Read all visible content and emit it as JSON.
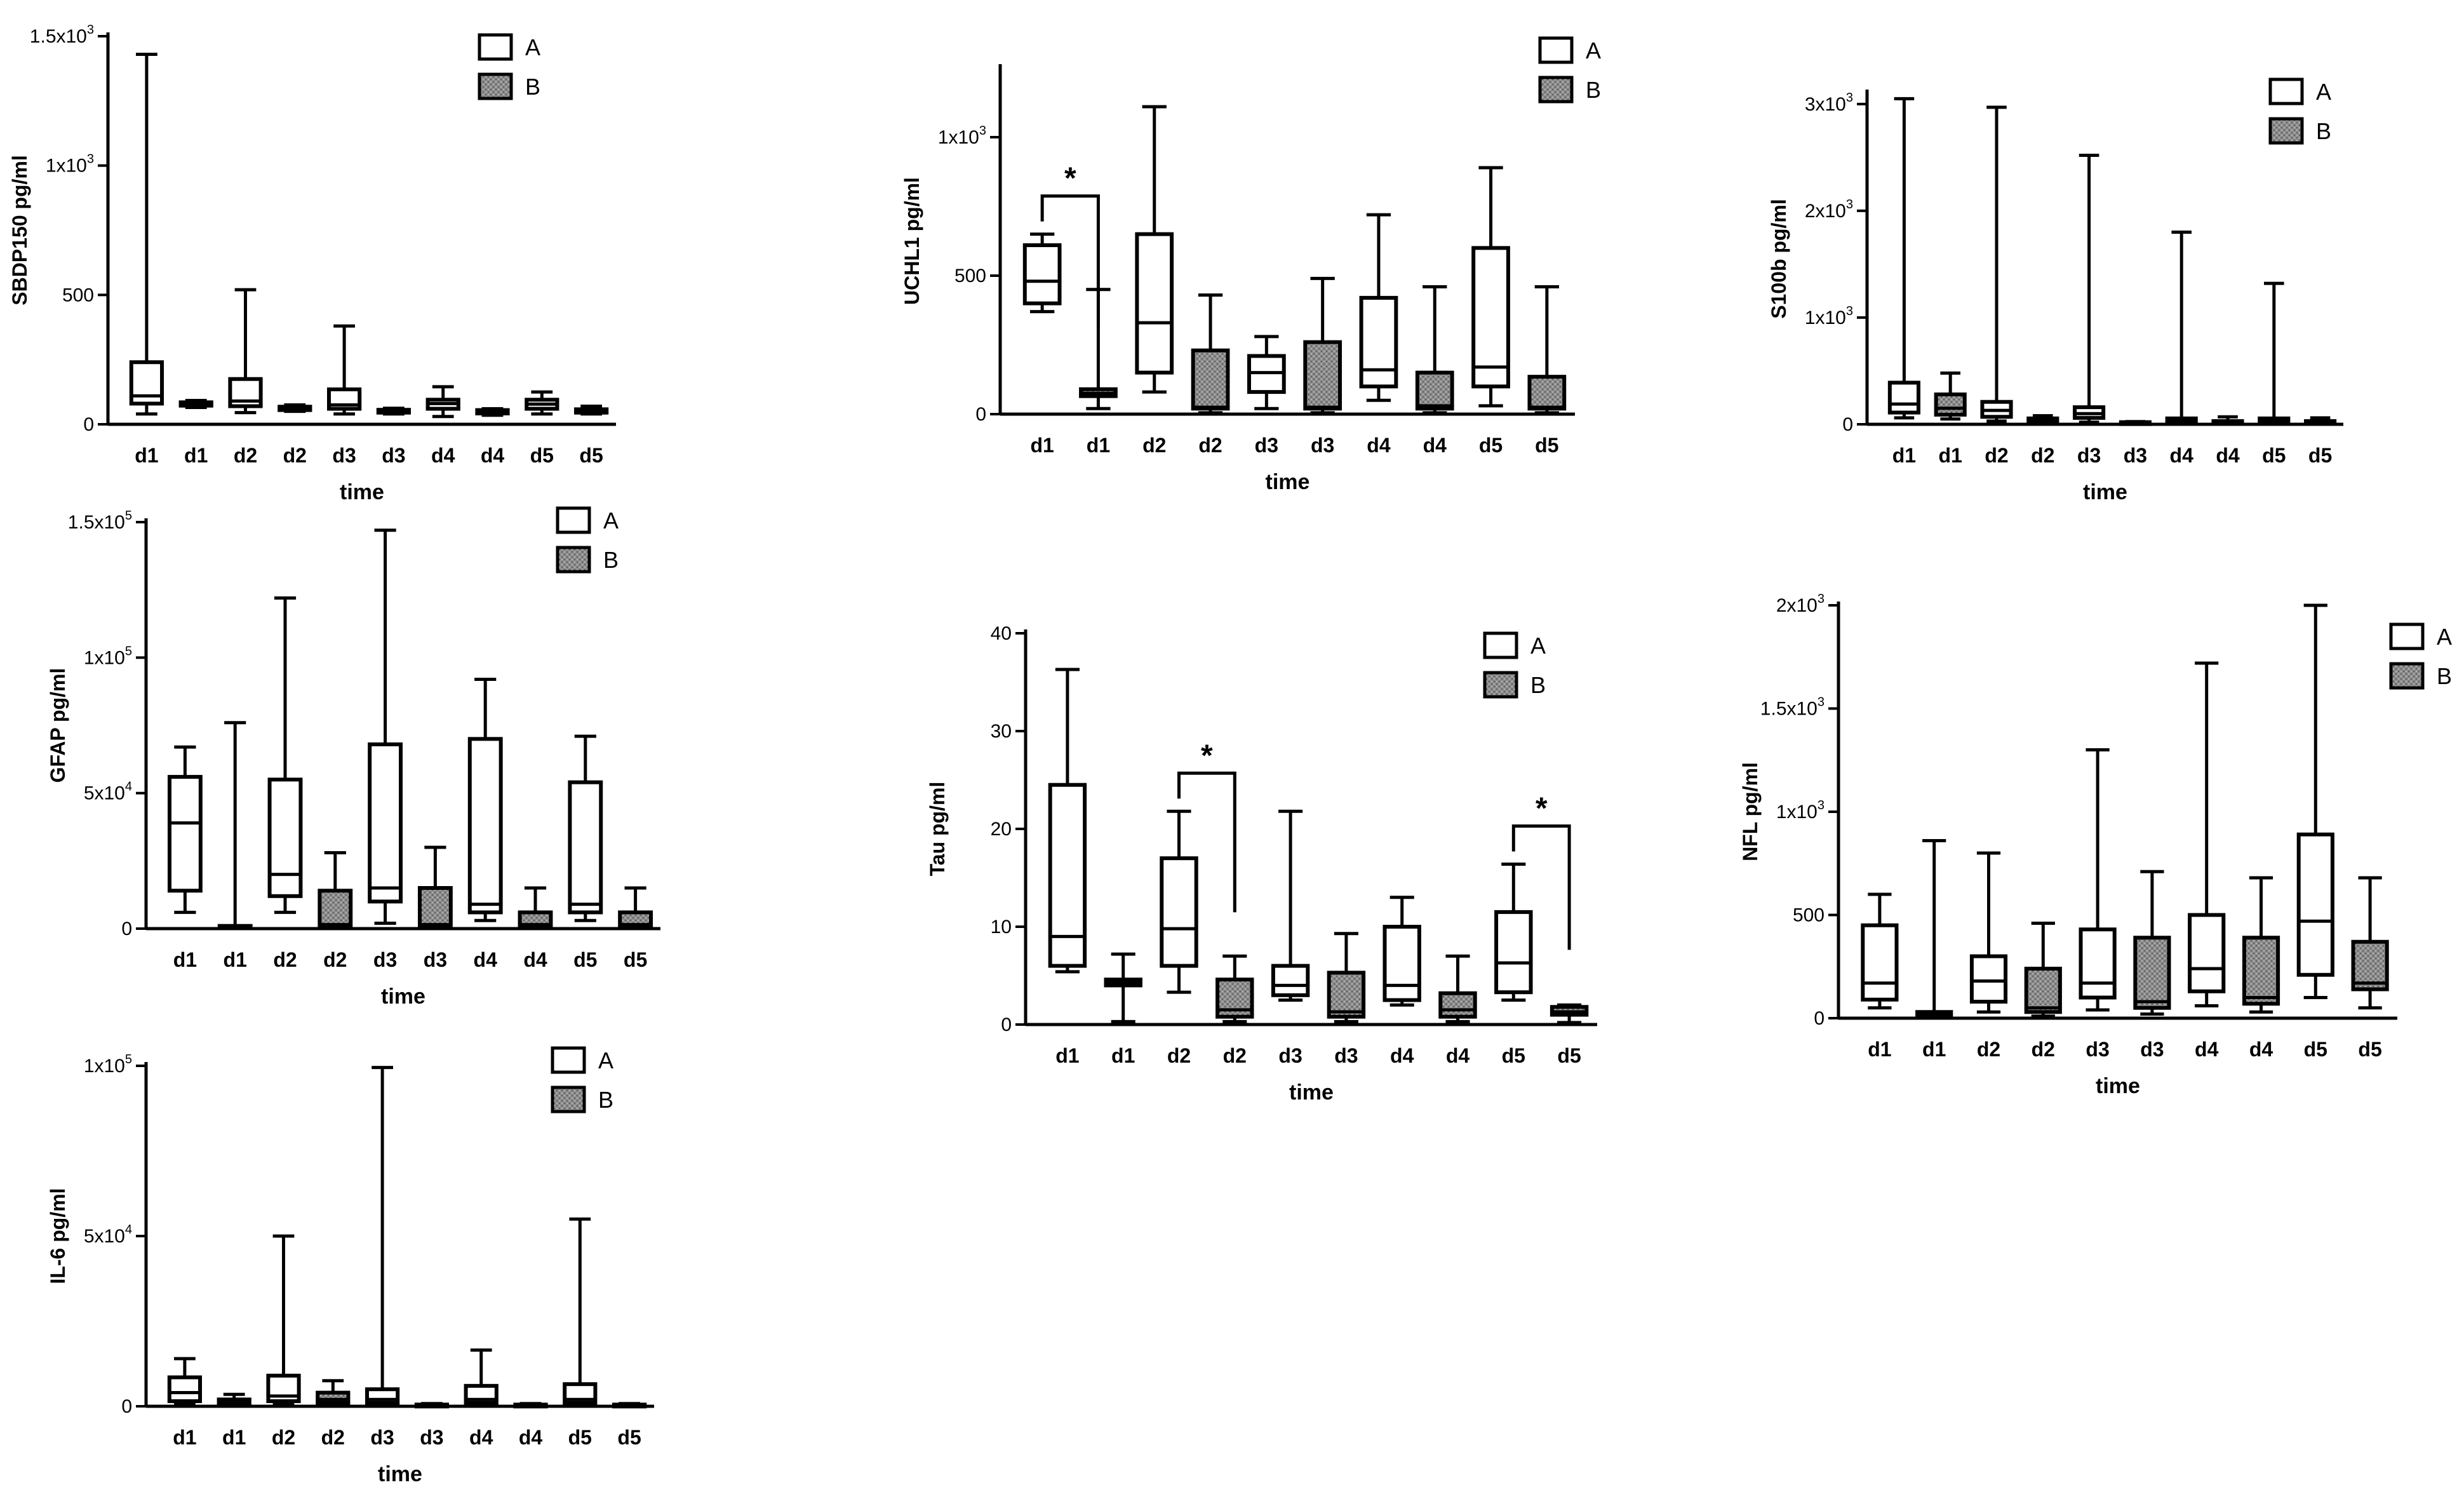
{
  "legend": {
    "A": "A",
    "B": "B"
  },
  "colors": {
    "A_fill": "#ffffff",
    "B_fill": "#8c8c8c",
    "stroke": "#000000"
  },
  "chart_data": [
    {
      "id": "sbdp150",
      "type": "box",
      "ylabel": "SBDP150 pg/ml",
      "xlabel": "time",
      "ylim": [
        0,
        1500
      ],
      "yticks": [
        {
          "v": 0,
          "b": "0",
          "s": ""
        },
        {
          "v": 500,
          "b": "500",
          "s": ""
        },
        {
          "v": 1000,
          "b": "1x10",
          "s": "3"
        },
        {
          "v": 1500,
          "b": "1.5x10",
          "s": "3"
        }
      ],
      "categories": [
        "d1",
        "d1",
        "d2",
        "d2",
        "d3",
        "d3",
        "d4",
        "d4",
        "d5",
        "d5"
      ],
      "groups": [
        "A",
        "B",
        "A",
        "B",
        "A",
        "B",
        "A",
        "B",
        "A",
        "B"
      ],
      "boxes": [
        {
          "min": 40,
          "q1": 80,
          "median": 110,
          "q3": 240,
          "max": 1430
        },
        {
          "min": 65,
          "q1": 72,
          "median": 78,
          "q3": 85,
          "max": 92
        },
        {
          "min": 45,
          "q1": 70,
          "median": 90,
          "q3": 175,
          "max": 520
        },
        {
          "min": 50,
          "q1": 55,
          "median": 60,
          "q3": 68,
          "max": 75
        },
        {
          "min": 40,
          "q1": 60,
          "median": 75,
          "q3": 135,
          "max": 380
        },
        {
          "min": 40,
          "q1": 45,
          "median": 50,
          "q3": 56,
          "max": 62
        },
        {
          "min": 30,
          "q1": 60,
          "median": 80,
          "q3": 95,
          "max": 145
        },
        {
          "min": 35,
          "q1": 42,
          "median": 48,
          "q3": 55,
          "max": 60
        },
        {
          "min": 40,
          "q1": 60,
          "median": 78,
          "q3": 95,
          "max": 125
        },
        {
          "min": 40,
          "q1": 45,
          "median": 52,
          "q3": 58,
          "max": 70
        }
      ],
      "significance": []
    },
    {
      "id": "uchl1",
      "type": "box",
      "ylabel": "UCHL1 pg/ml",
      "xlabel": "time",
      "ylim": [
        0,
        1250
      ],
      "yticks": [
        {
          "v": 0,
          "b": "0",
          "s": ""
        },
        {
          "v": 500,
          "b": "500",
          "s": ""
        },
        {
          "v": 1000,
          "b": "1x10",
          "s": "3"
        }
      ],
      "categories": [
        "d1",
        "d1",
        "d2",
        "d2",
        "d3",
        "d3",
        "d4",
        "d4",
        "d5",
        "d5"
      ],
      "groups": [
        "A",
        "B",
        "A",
        "B",
        "A",
        "B",
        "A",
        "B",
        "A",
        "B"
      ],
      "boxes": [
        {
          "min": 370,
          "q1": 400,
          "median": 480,
          "q3": 610,
          "max": 650
        },
        {
          "min": 20,
          "q1": 65,
          "median": 75,
          "q3": 90,
          "max": 450
        },
        {
          "min": 80,
          "q1": 150,
          "median": 330,
          "q3": 650,
          "max": 1110
        },
        {
          "min": 5,
          "q1": 20,
          "median": 25,
          "q3": 230,
          "max": 430
        },
        {
          "min": 20,
          "q1": 80,
          "median": 150,
          "q3": 210,
          "max": 280
        },
        {
          "min": 5,
          "q1": 20,
          "median": 25,
          "q3": 260,
          "max": 490
        },
        {
          "min": 50,
          "q1": 100,
          "median": 160,
          "q3": 420,
          "max": 720
        },
        {
          "min": 5,
          "q1": 20,
          "median": 30,
          "q3": 150,
          "max": 460
        },
        {
          "min": 30,
          "q1": 100,
          "median": 170,
          "q3": 600,
          "max": 890
        },
        {
          "min": 5,
          "q1": 20,
          "median": 25,
          "q3": 135,
          "max": 460
        }
      ],
      "significance": [
        {
          "from": 0,
          "to": 1,
          "label": "*"
        }
      ]
    },
    {
      "id": "s100b",
      "type": "box",
      "ylabel": "S100b pg/ml",
      "xlabel": "time",
      "ylim": [
        0,
        3100
      ],
      "yticks": [
        {
          "v": 0,
          "b": "0",
          "s": ""
        },
        {
          "v": 1000,
          "b": "1x10",
          "s": "3"
        },
        {
          "v": 2000,
          "b": "2x10",
          "s": "3"
        },
        {
          "v": 3000,
          "b": "3x10",
          "s": "3"
        }
      ],
      "categories": [
        "d1",
        "d1",
        "d2",
        "d2",
        "d3",
        "d3",
        "d4",
        "d4",
        "d5",
        "d5"
      ],
      "groups": [
        "A",
        "B",
        "A",
        "B",
        "A",
        "B",
        "A",
        "B",
        "A",
        "B"
      ],
      "boxes": [
        {
          "min": 60,
          "q1": 110,
          "median": 190,
          "q3": 390,
          "max": 3050
        },
        {
          "min": 50,
          "q1": 90,
          "median": 150,
          "q3": 280,
          "max": 480
        },
        {
          "min": 30,
          "q1": 70,
          "median": 130,
          "q3": 210,
          "max": 2970
        },
        {
          "min": 5,
          "q1": 20,
          "median": 30,
          "q3": 55,
          "max": 80
        },
        {
          "min": 20,
          "q1": 60,
          "median": 100,
          "q3": 160,
          "max": 2520
        },
        {
          "min": 5,
          "q1": 10,
          "median": 15,
          "q3": 20,
          "max": 25
        },
        {
          "min": 5,
          "q1": 15,
          "median": 25,
          "q3": 55,
          "max": 1800
        },
        {
          "min": 5,
          "q1": 10,
          "median": 20,
          "q3": 30,
          "max": 70
        },
        {
          "min": 5,
          "q1": 15,
          "median": 25,
          "q3": 55,
          "max": 1320
        },
        {
          "min": 5,
          "q1": 10,
          "median": 20,
          "q3": 30,
          "max": 60
        }
      ],
      "significance": []
    },
    {
      "id": "gfap",
      "type": "box",
      "ylabel": "GFAP pg/ml",
      "xlabel": "time",
      "ylim": [
        0,
        150000
      ],
      "yticks": [
        {
          "v": 0,
          "b": "0",
          "s": ""
        },
        {
          "v": 50000,
          "b": "5x10",
          "s": "4"
        },
        {
          "v": 100000,
          "b": "1x10",
          "s": "5"
        },
        {
          "v": 150000,
          "b": "1.5x10",
          "s": "5"
        }
      ],
      "categories": [
        "d1",
        "d1",
        "d2",
        "d2",
        "d3",
        "d3",
        "d4",
        "d4",
        "d5",
        "d5"
      ],
      "groups": [
        "A",
        "B",
        "A",
        "B",
        "A",
        "B",
        "A",
        "B",
        "A",
        "B"
      ],
      "boxes": [
        {
          "min": 6000,
          "q1": 14000,
          "median": 39000,
          "q3": 56000,
          "max": 67000
        },
        {
          "min": 0,
          "q1": 200,
          "median": 500,
          "q3": 1000,
          "max": 76000
        },
        {
          "min": 6000,
          "q1": 12000,
          "median": 20000,
          "q3": 55000,
          "max": 122000
        },
        {
          "min": 0,
          "q1": 500,
          "median": 1500,
          "q3": 14000,
          "max": 28000
        },
        {
          "min": 2000,
          "q1": 10000,
          "median": 15000,
          "q3": 68000,
          "max": 147000
        },
        {
          "min": 0,
          "q1": 500,
          "median": 1500,
          "q3": 15000,
          "max": 30000
        },
        {
          "min": 3000,
          "q1": 6000,
          "median": 9000,
          "q3": 70000,
          "max": 92000
        },
        {
          "min": 0,
          "q1": 500,
          "median": 1500,
          "q3": 6000,
          "max": 15000
        },
        {
          "min": 3000,
          "q1": 6000,
          "median": 9000,
          "q3": 54000,
          "max": 71000
        },
        {
          "min": 0,
          "q1": 500,
          "median": 1500,
          "q3": 6000,
          "max": 15000
        }
      ],
      "significance": []
    },
    {
      "id": "tau",
      "type": "box",
      "ylabel": "Tau pg/ml",
      "xlabel": "time",
      "ylim": [
        0,
        40
      ],
      "yticks": [
        {
          "v": 0,
          "b": "0",
          "s": ""
        },
        {
          "v": 10,
          "b": "10",
          "s": ""
        },
        {
          "v": 20,
          "b": "20",
          "s": ""
        },
        {
          "v": 30,
          "b": "30",
          "s": ""
        },
        {
          "v": 40,
          "b": "40",
          "s": ""
        }
      ],
      "categories": [
        "d1",
        "d1",
        "d2",
        "d2",
        "d3",
        "d3",
        "d4",
        "d4",
        "d5",
        "d5"
      ],
      "groups": [
        "A",
        "B",
        "A",
        "B",
        "A",
        "B",
        "A",
        "B",
        "A",
        "B"
      ],
      "boxes": [
        {
          "min": 5.4,
          "q1": 6,
          "median": 9,
          "q3": 24.5,
          "max": 36.3
        },
        {
          "min": 0.3,
          "q1": 4,
          "median": 4.3,
          "q3": 4.6,
          "max": 7.2
        },
        {
          "min": 3.3,
          "q1": 6,
          "median": 9.8,
          "q3": 17,
          "max": 21.8
        },
        {
          "min": 0.3,
          "q1": 0.8,
          "median": 1.5,
          "q3": 4.6,
          "max": 7
        },
        {
          "min": 2.5,
          "q1": 3,
          "median": 4,
          "q3": 6,
          "max": 21.8
        },
        {
          "min": 0.3,
          "q1": 0.8,
          "median": 1.3,
          "q3": 5.3,
          "max": 9.3
        },
        {
          "min": 2,
          "q1": 2.5,
          "median": 4,
          "q3": 10,
          "max": 13
        },
        {
          "min": 0.3,
          "q1": 0.8,
          "median": 1.5,
          "q3": 3.2,
          "max": 7
        },
        {
          "min": 2.5,
          "q1": 3.3,
          "median": 6.3,
          "q3": 11.5,
          "max": 16.4
        },
        {
          "min": 0.2,
          "q1": 1,
          "median": 1.3,
          "q3": 1.8,
          "max": 2
        }
      ],
      "significance": [
        {
          "from": 2,
          "to": 3,
          "label": "*"
        },
        {
          "from": 8,
          "to": 9,
          "label": "*"
        }
      ]
    },
    {
      "id": "nfl",
      "type": "box",
      "ylabel": "NFL pg/ml",
      "xlabel": "time",
      "ylim": [
        0,
        2000
      ],
      "yticks": [
        {
          "v": 0,
          "b": "0",
          "s": ""
        },
        {
          "v": 500,
          "b": "500",
          "s": ""
        },
        {
          "v": 1000,
          "b": "1x10",
          "s": "3"
        },
        {
          "v": 1500,
          "b": "1.5x10",
          "s": "3"
        },
        {
          "v": 2000,
          "b": "2x10",
          "s": "3"
        }
      ],
      "categories": [
        "d1",
        "d1",
        "d2",
        "d2",
        "d3",
        "d3",
        "d4",
        "d4",
        "d5",
        "d5"
      ],
      "groups": [
        "A",
        "B",
        "A",
        "B",
        "A",
        "B",
        "A",
        "B",
        "A",
        "B"
      ],
      "boxes": [
        {
          "min": 50,
          "q1": 90,
          "median": 170,
          "q3": 450,
          "max": 600
        },
        {
          "min": 0,
          "q1": 10,
          "median": 20,
          "q3": 30,
          "max": 860
        },
        {
          "min": 30,
          "q1": 80,
          "median": 180,
          "q3": 300,
          "max": 800
        },
        {
          "min": 10,
          "q1": 30,
          "median": 50,
          "q3": 240,
          "max": 460
        },
        {
          "min": 40,
          "q1": 100,
          "median": 170,
          "q3": 430,
          "max": 1300
        },
        {
          "min": 20,
          "q1": 50,
          "median": 80,
          "q3": 390,
          "max": 710
        },
        {
          "min": 60,
          "q1": 130,
          "median": 240,
          "q3": 500,
          "max": 1720
        },
        {
          "min": 30,
          "q1": 70,
          "median": 100,
          "q3": 390,
          "max": 680
        },
        {
          "min": 100,
          "q1": 210,
          "median": 470,
          "q3": 890,
          "max": 2000
        },
        {
          "min": 50,
          "q1": 140,
          "median": 170,
          "q3": 370,
          "max": 680
        }
      ],
      "significance": []
    },
    {
      "id": "il6",
      "type": "box",
      "ylabel": "IL-6 pg/ml",
      "xlabel": "time",
      "ylim": [
        0,
        100000
      ],
      "yticks": [
        {
          "v": 0,
          "b": "0",
          "s": ""
        },
        {
          "v": 50000,
          "b": "5x10",
          "s": "4"
        },
        {
          "v": 100000,
          "b": "1x10",
          "s": "5"
        }
      ],
      "categories": [
        "d1",
        "d1",
        "d2",
        "d2",
        "d3",
        "d3",
        "d4",
        "d4",
        "d5",
        "d5"
      ],
      "groups": [
        "A",
        "B",
        "A",
        "B",
        "A",
        "B",
        "A",
        "B",
        "A",
        "B"
      ],
      "boxes": [
        {
          "min": 500,
          "q1": 1500,
          "median": 4000,
          "q3": 8500,
          "max": 14000
        },
        {
          "min": 100,
          "q1": 500,
          "median": 1000,
          "q3": 2000,
          "max": 3500
        },
        {
          "min": 500,
          "q1": 1500,
          "median": 3000,
          "q3": 9000,
          "max": 50000
        },
        {
          "min": 500,
          "q1": 1000,
          "median": 2000,
          "q3": 4000,
          "max": 7500
        },
        {
          "min": 500,
          "q1": 1000,
          "median": 2000,
          "q3": 5000,
          "max": 99500
        },
        {
          "min": 100,
          "q1": 200,
          "median": 300,
          "q3": 500,
          "max": 800
        },
        {
          "min": 500,
          "q1": 1000,
          "median": 2000,
          "q3": 6000,
          "max": 16500
        },
        {
          "min": 100,
          "q1": 200,
          "median": 300,
          "q3": 500,
          "max": 800
        },
        {
          "min": 200,
          "q1": 1000,
          "median": 2000,
          "q3": 6500,
          "max": 55000
        },
        {
          "min": 100,
          "q1": 200,
          "median": 300,
          "q3": 500,
          "max": 800
        }
      ],
      "significance": []
    }
  ]
}
